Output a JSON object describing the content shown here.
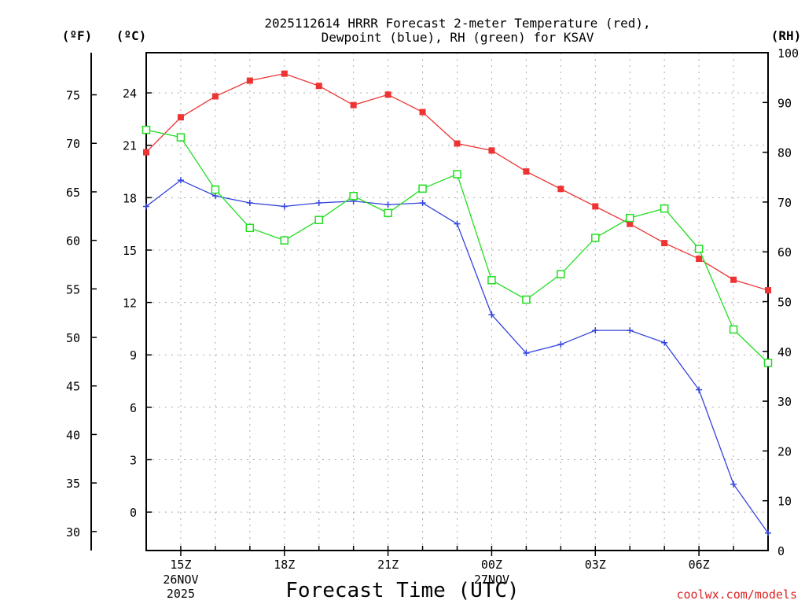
{
  "chart_data": {
    "type": "line",
    "title_line1": "2025112614 HRRR Forecast 2-meter Temperature (red),",
    "title_line2": "Dewpoint (blue), RH (green) for KSAV",
    "xlabel": "Forecast Time (UTC)",
    "credit": "coolwx.com/models",
    "unit_f": "(ºF)",
    "unit_c": "(ºC)",
    "unit_rh": "(RH)",
    "hours": [
      14,
      15,
      16,
      17,
      18,
      19,
      20,
      21,
      22,
      23,
      24,
      25,
      26,
      27,
      28,
      29,
      30,
      31,
      32
    ],
    "xlim": [
      14,
      32
    ],
    "x_ticks": [
      {
        "hour": 15,
        "label": "15Z"
      },
      {
        "hour": 18,
        "label": "18Z"
      },
      {
        "hour": 21,
        "label": "21Z"
      },
      {
        "hour": 24,
        "label": "00Z"
      },
      {
        "hour": 27,
        "label": "03Z"
      },
      {
        "hour": 30,
        "label": "06Z"
      }
    ],
    "date_labels": [
      {
        "hour": 15,
        "line1": "26NOV",
        "line2": "2025"
      },
      {
        "hour": 24,
        "line1": "27NOV",
        "line2": ""
      }
    ],
    "ylim_c": [
      -2.2,
      26.3
    ],
    "c_ticks": [
      0,
      3,
      6,
      9,
      12,
      15,
      18,
      21,
      24
    ],
    "f_ticks": [
      30,
      35,
      40,
      45,
      50,
      55,
      60,
      65,
      70,
      75
    ],
    "rh_ticks": [
      0,
      10,
      20,
      30,
      40,
      50,
      60,
      70,
      80,
      90,
      100
    ],
    "ylim_rh": [
      0,
      100
    ],
    "colors": {
      "temperature": "#ee3333",
      "dewpoint": "#3344dd",
      "rh": "#22dd22",
      "grid": "#aaaaaa",
      "credit": "#dd2222"
    },
    "series": [
      {
        "name": "Temperature",
        "unit": "C",
        "marker": "filled-square",
        "values": [
          20.6,
          22.6,
          23.8,
          24.7,
          25.1,
          24.4,
          23.3,
          23.9,
          22.9,
          21.1,
          20.7,
          19.5,
          18.5,
          17.5,
          16.5,
          15.4,
          14.5,
          13.3,
          12.7
        ]
      },
      {
        "name": "Dewpoint",
        "unit": "C",
        "marker": "plus",
        "values": [
          17.5,
          19.0,
          18.1,
          17.7,
          17.5,
          17.7,
          17.8,
          17.6,
          17.7,
          16.5,
          11.3,
          9.1,
          9.6,
          10.4,
          10.4,
          9.7,
          7.0,
          1.6,
          -1.2
        ]
      },
      {
        "name": "RH",
        "unit": "%",
        "marker": "open-square",
        "values": [
          84.5,
          83.0,
          72.5,
          64.8,
          62.3,
          66.4,
          71.2,
          67.8,
          72.7,
          75.6,
          54.3,
          50.4,
          55.5,
          62.8,
          66.8,
          68.7,
          60.6,
          44.4,
          37.7
        ]
      }
    ]
  }
}
